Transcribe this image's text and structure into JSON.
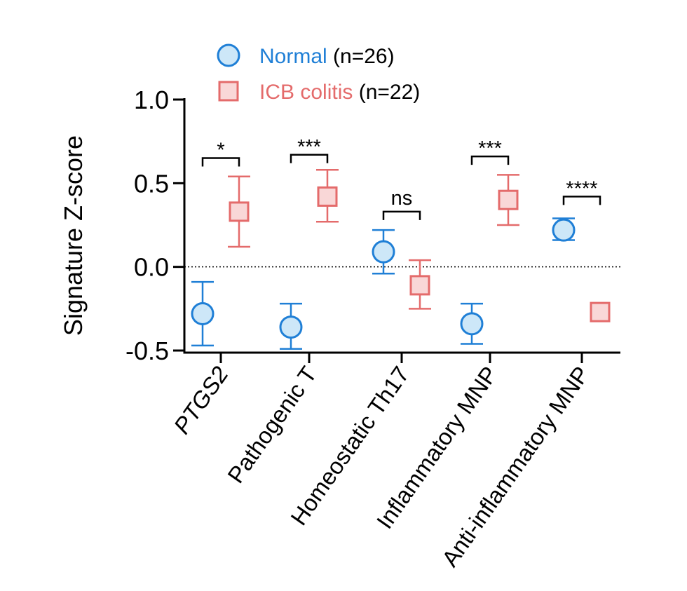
{
  "chart_data": {
    "type": "scatter",
    "title": "",
    "xlabel": "",
    "ylabel": "Signature Z-score",
    "ylim": [
      -0.5,
      1.0
    ],
    "yticks": [
      {
        "value": 1.0,
        "label": "1.0"
      },
      {
        "value": 0.5,
        "label": "0.5"
      },
      {
        "value": 0.0,
        "label": "0.0"
      },
      {
        "value": -0.5,
        "label": "-0.5"
      }
    ],
    "reference_line": 0,
    "categories": [
      "PTGS2",
      "Pathogenic T",
      "Homeostatic Th17",
      "Inflammatory MNP",
      "Anti-inflammatory MNP"
    ],
    "italic_categories": [
      "PTGS2"
    ],
    "series": [
      {
        "name": "Normal",
        "n_label": "(n=26)",
        "marker": "circle",
        "color": "#1f7fd6",
        "fill": "#cde7f8",
        "values": [
          -0.28,
          -0.36,
          0.09,
          -0.34,
          0.22
        ],
        "err_low": [
          -0.47,
          -0.49,
          -0.04,
          -0.46,
          0.16
        ],
        "err_high": [
          -0.09,
          -0.22,
          0.22,
          -0.22,
          0.29
        ]
      },
      {
        "name": "ICB colitis",
        "n_label": "(n=22)",
        "marker": "square",
        "color": "#e46b6b",
        "fill": "#f9d7d7",
        "values": [
          0.33,
          0.42,
          -0.11,
          0.4,
          -0.27
        ],
        "err_low": [
          0.12,
          0.27,
          -0.25,
          0.25,
          -0.27
        ],
        "err_high": [
          0.54,
          0.58,
          0.04,
          0.55,
          -0.27
        ]
      }
    ],
    "significance": [
      {
        "label": "*",
        "level": 0.65
      },
      {
        "label": "***",
        "level": 0.67
      },
      {
        "label": "ns",
        "level": 0.33
      },
      {
        "label": "***",
        "level": 0.66
      },
      {
        "label": "****",
        "level": 0.42
      }
    ],
    "legend_position": "top"
  }
}
